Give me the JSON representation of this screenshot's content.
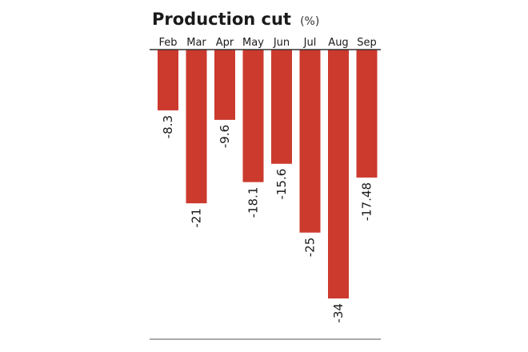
{
  "chart_data": {
    "type": "bar",
    "orientation": "vertical-downward",
    "title": "Production cut",
    "title_unit": "(%)",
    "xlabel": "",
    "ylabel": "",
    "categories": [
      "Feb",
      "Mar",
      "Apr",
      "May",
      "Jun",
      "Jul",
      "Aug",
      "Sep"
    ],
    "values": [
      -8.3,
      -21,
      -9.6,
      -18.1,
      -15.6,
      -25,
      -34,
      -17.48
    ],
    "value_labels": [
      "-8.3",
      "-21",
      "-9.6",
      "-18.1",
      "-15.6",
      "-25",
      "-34",
      "-17.48"
    ],
    "ylim": [
      -40,
      0
    ],
    "grid": false,
    "legend": "none",
    "colors": {
      "bar": "#cc3a2e",
      "axis": "#333333",
      "text": "#1a1a1a"
    }
  }
}
